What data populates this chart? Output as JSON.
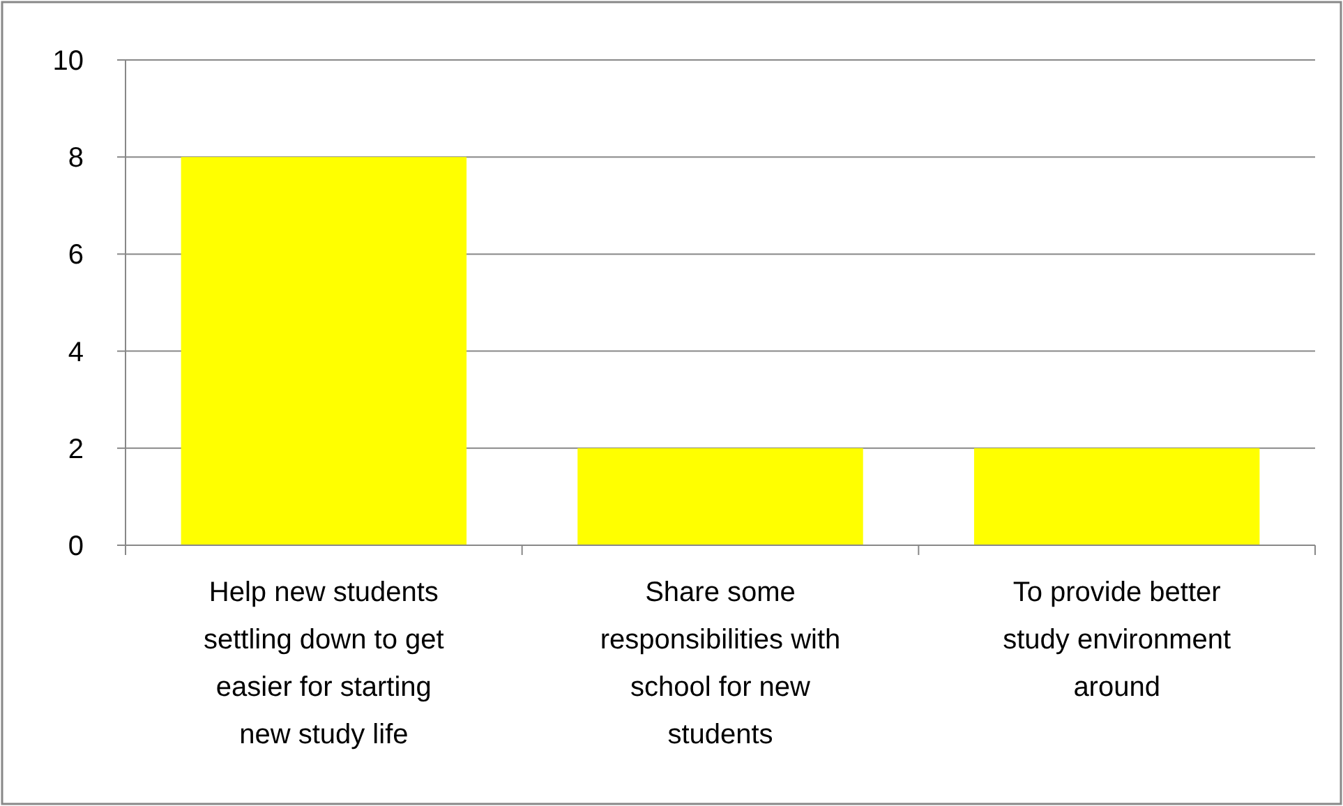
{
  "chart_data": {
    "type": "bar",
    "categories": [
      "Help new students settling down to get easier for starting new study life",
      "Share some responsibilities with school for new students",
      "To provide better study environment around"
    ],
    "values": [
      8,
      2,
      2
    ],
    "color": "#ffff00",
    "ylim": [
      0,
      10
    ],
    "yticks": [
      0,
      2,
      4,
      6,
      8,
      10
    ],
    "grid": "y"
  }
}
